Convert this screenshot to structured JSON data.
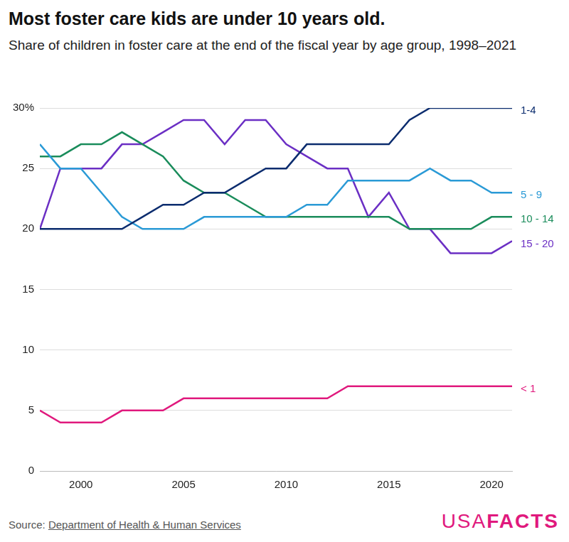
{
  "chart_data": {
    "type": "line",
    "title": "Most foster care kids are under 10 years old.",
    "subtitle": "Share of children in foster care at the end of the fiscal year by age group, 1998–2021",
    "source_label": "Source:",
    "source": "Department of Health & Human Services",
    "brand": [
      "USA",
      "FACTS"
    ],
    "x": [
      1998,
      1999,
      2000,
      2001,
      2002,
      2003,
      2004,
      2005,
      2006,
      2007,
      2008,
      2009,
      2010,
      2011,
      2012,
      2013,
      2014,
      2015,
      2016,
      2017,
      2018,
      2019,
      2020,
      2021
    ],
    "series": [
      {
        "name": "1-4",
        "color": "#0b2c6e",
        "values": [
          20,
          20,
          20,
          20,
          20,
          21,
          22,
          22,
          23,
          23,
          24,
          25,
          25,
          27,
          27,
          27,
          27,
          27,
          29,
          30,
          30,
          30,
          30,
          30
        ]
      },
      {
        "name": "5 - 9",
        "color": "#2a9ad6",
        "values": [
          27,
          25,
          25,
          23,
          21,
          20,
          20,
          20,
          21,
          21,
          21,
          21,
          21,
          22,
          22,
          24,
          24,
          24,
          24,
          25,
          24,
          24,
          23,
          23
        ]
      },
      {
        "name": "10 - 14",
        "color": "#1a8c5b",
        "values": [
          26,
          26,
          27,
          27,
          28,
          27,
          26,
          24,
          23,
          23,
          22,
          21,
          21,
          21,
          21,
          21,
          21,
          21,
          20,
          20,
          20,
          20,
          21,
          21
        ]
      },
      {
        "name": "15 - 20",
        "color": "#6b2fc4",
        "values": [
          20,
          25,
          25,
          25,
          27,
          27,
          28,
          29,
          29,
          27,
          29,
          29,
          27,
          26,
          25,
          25,
          21,
          23,
          20,
          20,
          18,
          18,
          18,
          19
        ]
      },
      {
        "name": "< 1",
        "color": "#e0197d",
        "values": [
          5,
          4,
          4,
          4,
          5,
          5,
          5,
          6,
          6,
          6,
          6,
          6,
          6,
          6,
          6,
          7,
          7,
          7,
          7,
          7,
          7,
          7,
          7,
          7
        ]
      }
    ],
    "xlim": [
      1998,
      2021
    ],
    "xticks": [
      2000,
      2005,
      2010,
      2015,
      2020
    ],
    "ylim": [
      0,
      30
    ],
    "yticks": [
      0,
      5,
      10,
      15,
      20,
      25,
      {
        "value": 30,
        "label": "30%"
      }
    ],
    "grid": true
  }
}
